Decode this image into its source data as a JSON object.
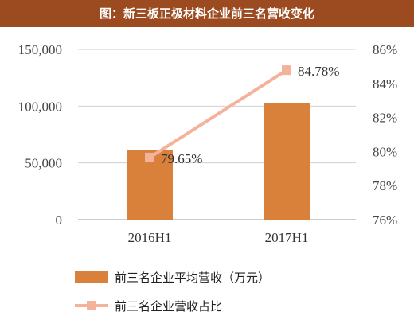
{
  "header": {
    "title": "图：新三板正极材料企业前三名营收变化"
  },
  "chart_data": {
    "type": "bar",
    "categories": [
      "2016H1",
      "2017H1"
    ],
    "series": [
      {
        "name": "前三名企业平均营收（万元）",
        "type": "bar",
        "axis": "left",
        "values": [
          61000,
          102500
        ]
      },
      {
        "name": "前三名企业营收占比",
        "type": "line",
        "axis": "right",
        "values": [
          79.65,
          84.78
        ]
      }
    ],
    "data_labels": [
      "79.65%",
      "84.78%"
    ],
    "left_axis": {
      "ticks": [
        "0",
        "50,000",
        "100,000",
        "150,000"
      ],
      "ylim": [
        0,
        150000
      ]
    },
    "right_axis": {
      "ticks": [
        "76%",
        "78%",
        "80%",
        "82%",
        "84%",
        "86%"
      ],
      "ylim": [
        76,
        86
      ]
    },
    "grid": true,
    "legend_position": "bottom",
    "colors": {
      "bar": "#d9803a",
      "line": "#f4b29a",
      "title_bg": "#9c4a1f",
      "grid": "#d0d0d0"
    }
  }
}
